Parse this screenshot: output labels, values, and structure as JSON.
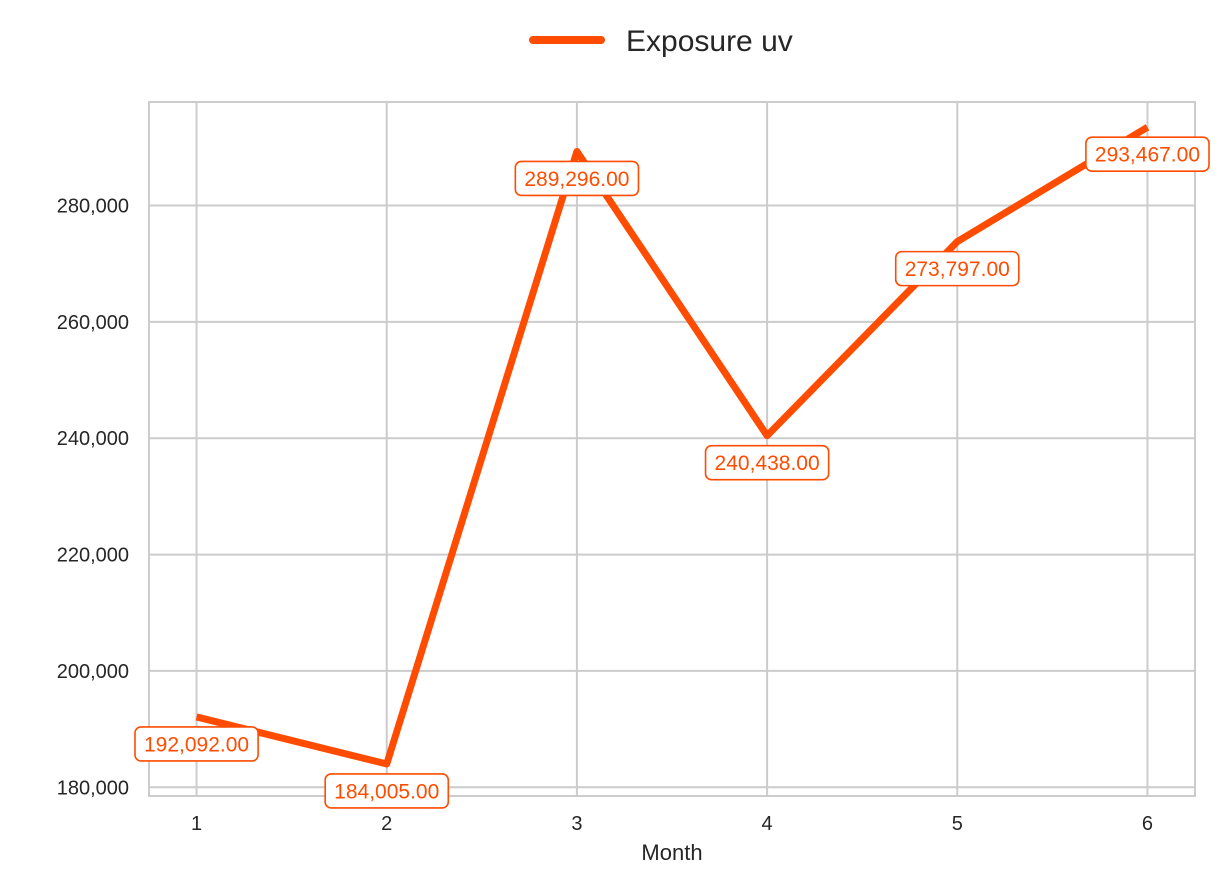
{
  "chart_data": {
    "type": "line",
    "title": "",
    "xlabel": "Month",
    "ylabel": "",
    "x": [
      1,
      2,
      3,
      4,
      5,
      6
    ],
    "x_tick_labels": [
      "1",
      "2",
      "3",
      "4",
      "5",
      "6"
    ],
    "y_tick_values": [
      180000,
      200000,
      220000,
      240000,
      260000,
      280000
    ],
    "y_tick_labels": [
      "180,000",
      "200,000",
      "220,000",
      "240,000",
      "260,000",
      "280,000"
    ],
    "xlim": [
      0.75,
      6.25
    ],
    "ylim": [
      178500,
      297800
    ],
    "grid": true,
    "legend_position": "top-center",
    "series": [
      {
        "name": "Exposure uv",
        "color": "#FF4C00",
        "values": [
          192092,
          184005,
          289296,
          240438,
          273797,
          293467
        ],
        "data_labels": [
          "192,092.00",
          "184,005.00",
          "289,296.00",
          "240,438.00",
          "273,797.00",
          "293,467.00"
        ]
      }
    ]
  }
}
